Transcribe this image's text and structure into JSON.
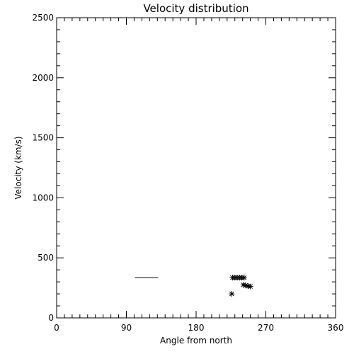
{
  "chart_data": {
    "type": "scatter",
    "title": "Velocity distribution",
    "xlabel": "Angle from north",
    "ylabel": "Velocity (km/s)",
    "xlim": [
      0,
      360
    ],
    "ylim": [
      0,
      2500
    ],
    "x_major_ticks": [
      0,
      90,
      180,
      270,
      360
    ],
    "y_major_ticks": [
      0,
      500,
      1000,
      1500,
      2000,
      2500
    ],
    "x_tick_labels": [
      "0",
      "90",
      "180",
      "270",
      "360"
    ],
    "y_tick_labels": [
      "0",
      "500",
      "1000",
      "1500",
      "2000",
      "2500"
    ],
    "x_minor_step": 10,
    "y_minor_step": 100,
    "grid": false,
    "marker": "asterisk",
    "points": [
      {
        "x": 226,
        "y": 200
      },
      {
        "x": 227,
        "y": 335
      },
      {
        "x": 230,
        "y": 335
      },
      {
        "x": 233,
        "y": 335
      },
      {
        "x": 236,
        "y": 335
      },
      {
        "x": 239,
        "y": 335
      },
      {
        "x": 242,
        "y": 335
      },
      {
        "x": 241,
        "y": 275
      },
      {
        "x": 244,
        "y": 270
      },
      {
        "x": 247,
        "y": 265
      },
      {
        "x": 250,
        "y": 262
      }
    ],
    "segments": [
      {
        "x": [
          101,
          131
        ],
        "y": [
          335,
          335
        ]
      }
    ],
    "colors": {
      "foreground": "#000000",
      "background": "#ffffff"
    }
  }
}
